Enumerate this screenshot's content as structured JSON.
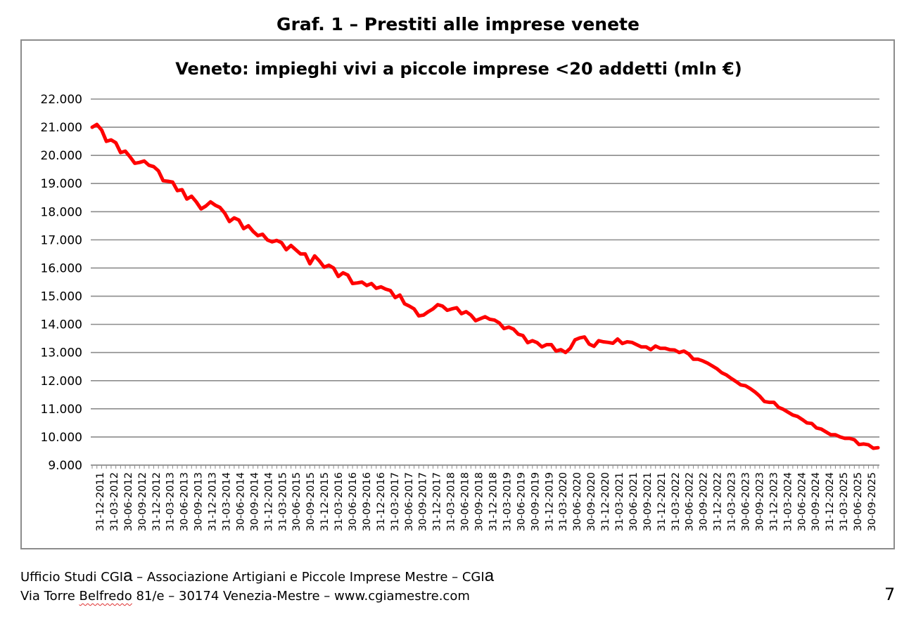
{
  "page": {
    "heading": "Graf. 1 – Prestiti alle imprese venete",
    "footer_line1_a": "Ufficio Studi CGI",
    "footer_line1_b": "a",
    "footer_line1_c": " – Associazione Artigiani e Piccole Imprese Mestre – CGI",
    "footer_line1_d": "a",
    "footer_line2_a": "Via Torre ",
    "footer_line2_b": "Belfredo",
    "footer_line2_c": " 81/e – 30174 Venezia-Mestre – www.cgiamestre.com",
    "page_number": "7"
  },
  "chart_data": {
    "type": "line",
    "title": "Veneto: impieghi vivi a piccole imprese <20 addetti (mln €)",
    "xlabel": "",
    "ylabel": "",
    "ylim": [
      9000,
      22000
    ],
    "y_ticks": [
      9000,
      10000,
      11000,
      12000,
      13000,
      14000,
      15000,
      16000,
      17000,
      18000,
      19000,
      20000,
      21000,
      22000
    ],
    "y_tick_labels": [
      "9.000",
      "10.000",
      "11.000",
      "12.000",
      "13.000",
      "14.000",
      "15.000",
      "16.000",
      "17.000",
      "18.000",
      "19.000",
      "20.000",
      "21.000",
      "22.000"
    ],
    "x_tick_labels": [
      "31-12-2011",
      "31-03-2012",
      "30-06-2012",
      "30-09-2012",
      "31-12-2012",
      "31-03-2013",
      "30-06-2013",
      "30-09-2013",
      "31-12-2013",
      "31-03-2014",
      "30-06-2014",
      "30-09-2014",
      "31-12-2014",
      "31-03-2015",
      "30-06-2015",
      "30-09-2015",
      "31-12-2015",
      "31-03-2016",
      "30-06-2016",
      "30-09-2016",
      "31-12-2016",
      "31-03-2017",
      "30-06-2017",
      "30-09-2017",
      "31-12-2017",
      "31-03-2018",
      "30-06-2018",
      "30-09-2018",
      "31-12-2018",
      "31-03-2019",
      "30-06-2019",
      "30-09-2019",
      "31-12-2019",
      "31-03-2020",
      "30-06-2020",
      "30-09-2020",
      "31-12-2020",
      "31-03-2021",
      "30-06-2021",
      "30-09-2021",
      "31-12-2021",
      "31-03-2022",
      "30-06-2022",
      "30-09-2022",
      "31-12-2022",
      "31-03-2023",
      "30-06-2023",
      "30-09-2023",
      "31-12-2023",
      "31-03-2024",
      "30-06-2024",
      "30-09-2024",
      "31-12-2024",
      "31-03-2025",
      "30-06-2025",
      "30-09-2025"
    ],
    "grid": true,
    "legend": "none",
    "line_color": "#ff0000",
    "series": [
      {
        "values": [
          21000,
          21100,
          20900,
          20500,
          20550,
          20450,
          20100,
          20150,
          19950,
          19720,
          19750,
          19800,
          19650,
          19600,
          19450,
          19100,
          19080,
          19050,
          18750,
          18780,
          18450,
          18550,
          18350,
          18100,
          18200,
          18350,
          18230,
          18150,
          17950,
          17650,
          17780,
          17700,
          17400,
          17500,
          17300,
          17150,
          17200,
          17000,
          16930,
          16980,
          16900,
          16650,
          16800,
          16650,
          16500,
          16500,
          16150,
          16430,
          16250,
          16030,
          16100,
          16000,
          15700,
          15830,
          15750,
          15450,
          15470,
          15500,
          15380,
          15450,
          15280,
          15330,
          15250,
          15200,
          14950,
          15040,
          14730,
          14650,
          14550,
          14300,
          14330,
          14450,
          14550,
          14700,
          14650,
          14500,
          14550,
          14590,
          14380,
          14450,
          14330,
          14130,
          14200,
          14270,
          14180,
          14150,
          14050,
          13850,
          13900,
          13830,
          13650,
          13600,
          13350,
          13420,
          13350,
          13200,
          13280,
          13280,
          13050,
          13100,
          13000,
          13150,
          13450,
          13520,
          13550,
          13300,
          13220,
          13420,
          13380,
          13360,
          13330,
          13480,
          13320,
          13380,
          13360,
          13280,
          13200,
          13200,
          13100,
          13230,
          13150,
          13150,
          13100,
          13090,
          13000,
          13050,
          12950,
          12760,
          12760,
          12700,
          12620,
          12520,
          12420,
          12280,
          12200,
          12080,
          11970,
          11850,
          11820,
          11720,
          11600,
          11450,
          11260,
          11230,
          11230,
          11050,
          10980,
          10880,
          10780,
          10730,
          10620,
          10500,
          10480,
          10320,
          10280,
          10180,
          10080,
          10080,
          10000,
          9950,
          9950,
          9900,
          9730,
          9750,
          9720,
          9600,
          9620
        ]
      }
    ]
  }
}
